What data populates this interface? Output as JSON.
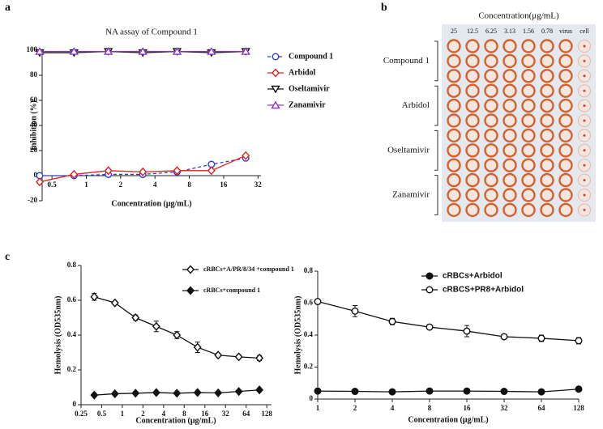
{
  "panels": [
    "a",
    "b",
    "c"
  ],
  "chart_data": [
    {
      "type": "line",
      "title": "NA assay of Compound 1",
      "xlabel": "Concentration (μg/mL)",
      "ylabel": "Inhibition (%)",
      "x": [
        0.39,
        0.78,
        1.56,
        3.13,
        6.25,
        12.5,
        25
      ],
      "xlog": true,
      "xlim": [
        0.41,
        34
      ],
      "xticks": [
        0.5,
        1,
        2,
        4,
        8,
        16,
        32
      ],
      "ylim": [
        -20,
        100
      ],
      "yticks": [
        -20,
        0,
        20,
        40,
        60,
        80,
        100
      ],
      "legend": "right",
      "series": [
        {
          "name": "Compound 1",
          "color": "#2a3fd0",
          "marker": "circle-open",
          "dash": true,
          "values": [
            0,
            0,
            1,
            1,
            3,
            9,
            14
          ]
        },
        {
          "name": "Arbidol",
          "color": "#e02020",
          "marker": "diamond-open",
          "values": [
            -5,
            1,
            4,
            3,
            4,
            4,
            16
          ]
        },
        {
          "name": "Oseltamivir",
          "color": "#111111",
          "marker": "triangle-down-open",
          "values": [
            98,
            98,
            99,
            98,
            99,
            98,
            99
          ]
        },
        {
          "name": "Zanamivir",
          "color": "#8a35c8",
          "marker": "triangle-up-open",
          "values": [
            99,
            99,
            99,
            99,
            99,
            99,
            99
          ]
        }
      ]
    },
    {
      "type": "line",
      "xlabel": "Concentration (μg/mL)",
      "ylabel": "Hemolysis (OD535nm)",
      "x": [
        0.39,
        0.78,
        1.56,
        3.13,
        6.25,
        12.5,
        25,
        50,
        100
      ],
      "xlog": true,
      "xlim": [
        0.25,
        150
      ],
      "xticks": [
        0.25,
        0.5,
        1,
        2,
        4,
        8,
        16,
        32,
        64,
        128
      ],
      "ylim": [
        0,
        0.8
      ],
      "yticks": [
        0,
        0.2,
        0.4,
        0.6,
        0.8
      ],
      "legend": "upper right",
      "series": [
        {
          "name": "cRBCs+A/PR/8/34 +compound 1",
          "color": "#111111",
          "marker": "diamond-open",
          "values": [
            0.62,
            0.585,
            0.5,
            0.45,
            0.4,
            0.33,
            0.285,
            0.275,
            0.268
          ],
          "errors": [
            0.02,
            0.01,
            0.015,
            0.03,
            0.02,
            0.03,
            0.01,
            0.01,
            0.015
          ]
        },
        {
          "name": "cRBCs+compound 1",
          "color": "#111111",
          "marker": "diamond",
          "values": [
            0.055,
            0.063,
            0.066,
            0.07,
            0.066,
            0.07,
            0.068,
            0.076,
            0.085
          ]
        }
      ]
    },
    {
      "type": "line",
      "xlabel": "Concentration (μg/mL)",
      "ylabel": "Hemolysis (OD535nm)",
      "x": [
        1,
        2,
        4,
        8,
        16,
        32,
        64,
        128
      ],
      "xlog": true,
      "xlim": [
        1,
        128
      ],
      "xticks": [
        1,
        2,
        4,
        8,
        16,
        32,
        64,
        128
      ],
      "ylim": [
        0,
        0.8
      ],
      "yticks": [
        0,
        0.2,
        0.4,
        0.6,
        0.8
      ],
      "legend": "upper right",
      "series": [
        {
          "name": "cRBCs+Arbidol",
          "color": "#111111",
          "marker": "circle",
          "values": [
            0.05,
            0.048,
            0.045,
            0.05,
            0.05,
            0.048,
            0.045,
            0.062
          ]
        },
        {
          "name": "cRBCS+PR8+Arbidol",
          "color": "#111111",
          "marker": "circle-open",
          "values": [
            0.61,
            0.55,
            0.485,
            0.45,
            0.425,
            0.39,
            0.38,
            0.365
          ],
          "errors": [
            0.01,
            0.035,
            0.02,
            0.015,
            0.035,
            0.01,
            0.02,
            0.02
          ]
        }
      ]
    }
  ],
  "plate": {
    "title": "Concentration(μg/mL)",
    "columns": [
      "25",
      "12.5",
      "6.25",
      "3.13",
      "1.56",
      "0.78",
      "virus",
      "cell"
    ],
    "rows": [
      "Compound 1",
      "Arbidol",
      "Oseltamivir",
      "Zanamivir"
    ]
  }
}
